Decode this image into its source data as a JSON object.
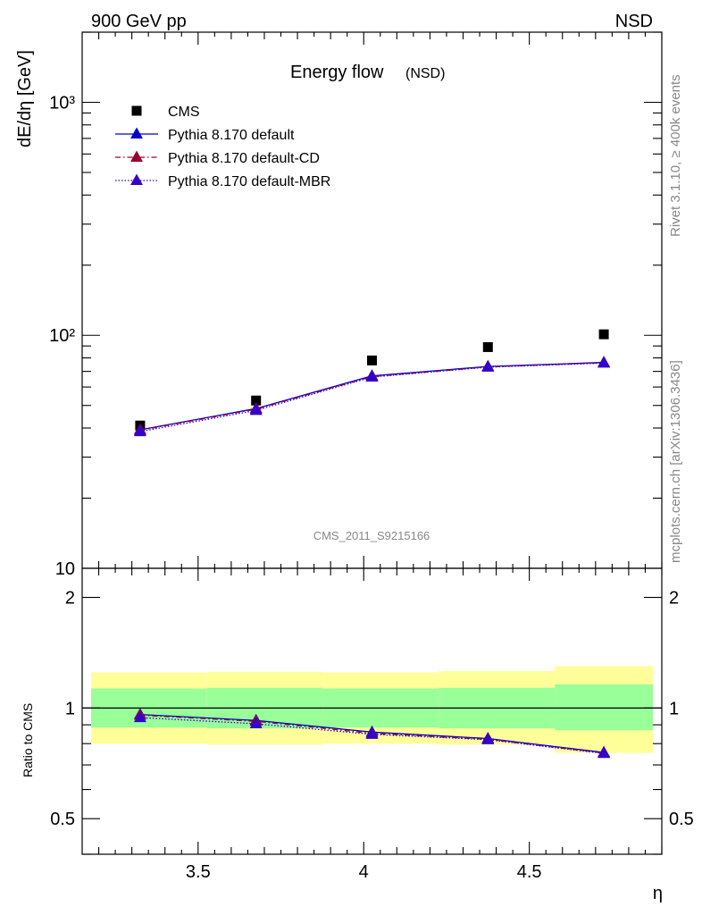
{
  "header": {
    "left": "900 GeV pp",
    "right": "NSD"
  },
  "side_labels": {
    "rivet": "Rivet 3.1.10, ≥ 400k events",
    "mcplots": "mcplots.cern.ch [arXiv:1306.3436]"
  },
  "chart_data": [
    {
      "type": "scatter",
      "title": "Energy flow",
      "subtitle": "(NSD)",
      "ylabel": "dE/dη [GeV]",
      "xlabel": "",
      "yscale": "log",
      "xlim": [
        3.15,
        4.9
      ],
      "ylim": [
        10,
        2000
      ],
      "ytick_labels": [
        "10",
        "10²",
        "10³"
      ],
      "watermark": "CMS_2011_S9215166",
      "legend_position": "top-left",
      "x": [
        3.325,
        3.675,
        4.025,
        4.375,
        4.725
      ],
      "series": [
        {
          "name": "CMS",
          "marker": "square",
          "color": "#000000",
          "values": [
            41.0,
            52.5,
            78.0,
            89.0,
            101.0
          ]
        },
        {
          "name": "Pythia 8.170 default",
          "marker": "triangle",
          "line": "solid",
          "color": "#0000cc",
          "values": [
            39.3,
            48.5,
            67.0,
            73.5,
            76.5
          ]
        },
        {
          "name": "Pythia 8.170 default-CD",
          "marker": "triangle",
          "line": "dashdot",
          "color": "#990033",
          "values": [
            39.1,
            48.2,
            66.5,
            73.2,
            76.2
          ]
        },
        {
          "name": "Pythia 8.170 default-MBR",
          "marker": "triangle",
          "line": "dotted",
          "color": "#3300cc",
          "values": [
            38.6,
            47.6,
            66.2,
            73.0,
            76.0
          ]
        }
      ]
    },
    {
      "type": "line",
      "ylabel": "Ratio to CMS",
      "xlabel": "η",
      "yscale": "log",
      "xlim": [
        3.15,
        4.9
      ],
      "ylim": [
        0.4,
        2.4
      ],
      "xtick_labels": [
        "3.5",
        "4",
        "4.5"
      ],
      "ytick_labels": [
        "0.5",
        "1",
        "2"
      ],
      "x": [
        3.325,
        3.675,
        4.025,
        4.375,
        4.725
      ],
      "bands": {
        "x_edges": [
          3.15,
          3.5,
          3.85,
          4.2,
          4.55,
          4.9
        ],
        "inner": [
          [
            0.885,
            1.13
          ],
          [
            0.88,
            1.135
          ],
          [
            0.885,
            1.13
          ],
          [
            0.88,
            1.135
          ],
          [
            0.87,
            1.16
          ]
        ],
        "outer": [
          [
            0.8,
            1.25
          ],
          [
            0.795,
            1.255
          ],
          [
            0.8,
            1.25
          ],
          [
            0.795,
            1.26
          ],
          [
            0.755,
            1.3
          ]
        ],
        "inner_color": "#99ff99",
        "outer_color": "#ffff99"
      },
      "series": [
        {
          "name": "Pythia 8.170 default",
          "color": "#0000cc",
          "line": "solid",
          "values": [
            0.96,
            0.925,
            0.86,
            0.826,
            0.757
          ]
        },
        {
          "name": "Pythia 8.170 default-CD",
          "color": "#990033",
          "line": "dashdot",
          "values": [
            0.956,
            0.92,
            0.853,
            0.822,
            0.754
          ]
        },
        {
          "name": "Pythia 8.170 default-MBR",
          "color": "#3300cc",
          "line": "dotted",
          "values": [
            0.942,
            0.906,
            0.848,
            0.82,
            0.752
          ]
        }
      ]
    }
  ]
}
